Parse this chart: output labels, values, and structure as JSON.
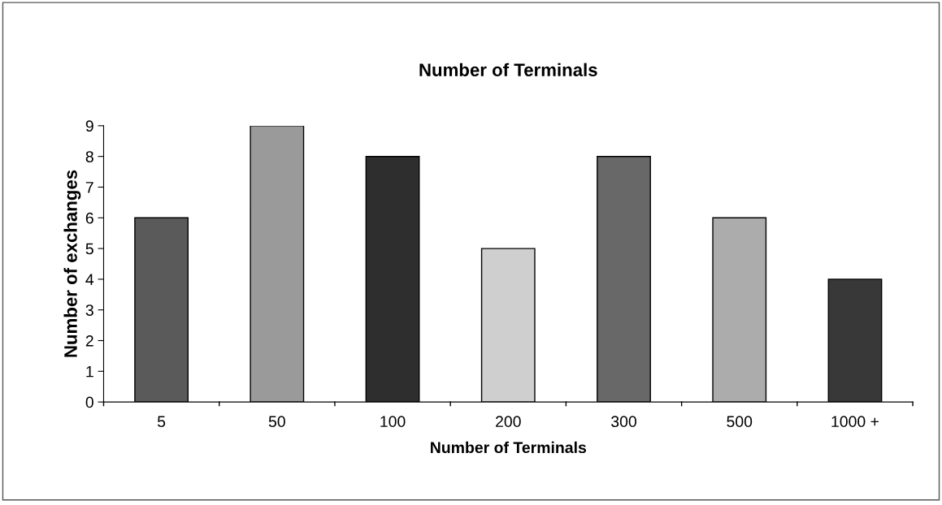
{
  "chart_data": {
    "type": "bar",
    "title": "Number of Terminals",
    "xlabel": "Number of Terminals",
    "ylabel": "Number of exchanges",
    "categories": [
      "5",
      "50",
      "100",
      "200",
      "300",
      "500",
      "1000 +"
    ],
    "values": [
      6,
      9,
      8,
      5,
      8,
      6,
      4
    ],
    "colors": [
      "#5a5a5a",
      "#9a9a9a",
      "#2e2e2e",
      "#cfcfcf",
      "#686868",
      "#acacac",
      "#383838"
    ],
    "ylim": [
      0,
      9
    ],
    "yticks": [
      0,
      1,
      2,
      3,
      4,
      5,
      6,
      7,
      8,
      9
    ],
    "grid": false,
    "legend": false
  }
}
